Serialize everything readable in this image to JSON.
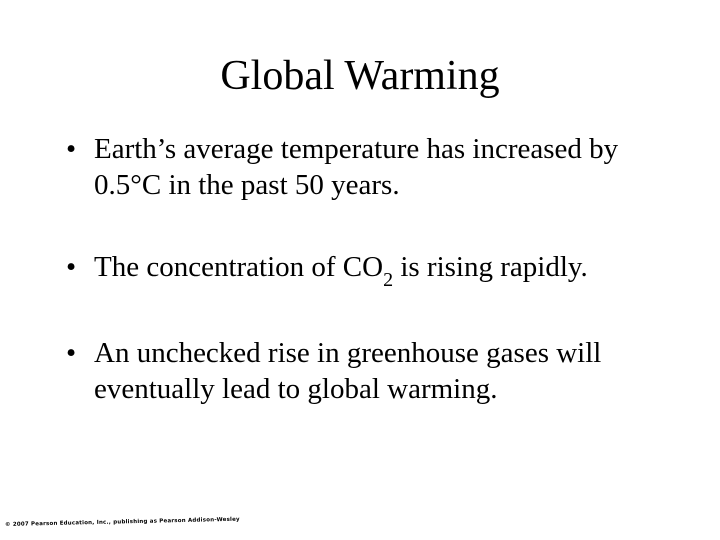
{
  "slide": {
    "title": "Global Warming",
    "bullet_char": "•",
    "bullets": [
      {
        "text": "Earth’s average temperature has increased by 0.5°C in the past 50 years."
      },
      {
        "text_before": "The concentration of CO",
        "subscript": "2",
        "text_after": " is rising rapidly."
      },
      {
        "text": "An unchecked rise in greenhouse gases will eventually lead to global warming."
      }
    ],
    "copyright": "© 2007 Pearson Education, Inc., publishing as Pearson Addison-Wesley"
  }
}
